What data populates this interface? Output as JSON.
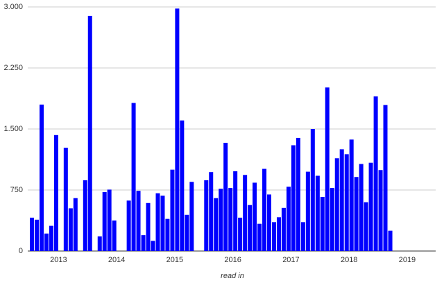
{
  "chart_data": {
    "type": "bar",
    "x_label": "read in",
    "color": "#0000ff",
    "grid": true,
    "x": [
      2012.5,
      2012.583,
      2012.667,
      2012.75,
      2012.833,
      2012.917,
      2013,
      2013.083,
      2013.167,
      2013.25,
      2013.333,
      2013.417,
      2013.5,
      2013.583,
      2013.667,
      2013.75,
      2013.833,
      2013.917,
      2014,
      2014.083,
      2014.167,
      2014.25,
      2014.333,
      2014.417,
      2014.5,
      2014.583,
      2014.667,
      2014.75,
      2014.833,
      2014.917,
      2015,
      2015.083,
      2015.167,
      2015.25,
      2015.333,
      2015.417,
      2015.5,
      2015.583,
      2015.667,
      2015.75,
      2015.833,
      2015.917,
      2016,
      2016.083,
      2016.167,
      2016.25,
      2016.333,
      2016.417,
      2016.5,
      2016.583,
      2016.667,
      2016.75,
      2016.833,
      2016.917,
      2017,
      2017.083,
      2017.167,
      2017.25,
      2017.333,
      2017.417,
      2017.5,
      2017.583,
      2017.667,
      2017.75,
      2017.833,
      2017.917,
      2018,
      2018.083,
      2018.167,
      2018.25,
      2018.333,
      2018.417,
      2018.5,
      2018.583,
      2018.667
    ],
    "values": [
      410,
      385,
      1800,
      215,
      310,
      1425,
      0,
      1270,
      525,
      650,
      0,
      870,
      2890,
      0,
      180,
      725,
      755,
      375,
      0,
      0,
      620,
      1820,
      740,
      195,
      590,
      125,
      710,
      680,
      395,
      1000,
      2980,
      1605,
      445,
      850,
      0,
      0,
      870,
      970,
      650,
      765,
      1330,
      775,
      980,
      410,
      935,
      565,
      840,
      335,
      1010,
      695,
      355,
      415,
      530,
      790,
      1300,
      1390,
      355,
      975,
      1500,
      925,
      665,
      2010,
      775,
      1140,
      1250,
      1190,
      1370,
      910,
      1070,
      600,
      1085,
      1900,
      995,
      1795,
      250
    ],
    "xlim": [
      2012.47,
      2019.49
    ],
    "xticks": [
      2013,
      2014,
      2015,
      2016,
      2017,
      2018,
      2019
    ],
    "ylim": [
      0,
      3000
    ],
    "yticks": [
      0,
      750,
      {
        "value": 1500,
        "label": "1.500"
      },
      {
        "value": 2250,
        "label": "2.250"
      },
      {
        "value": 3000,
        "label": "3.000"
      }
    ]
  }
}
